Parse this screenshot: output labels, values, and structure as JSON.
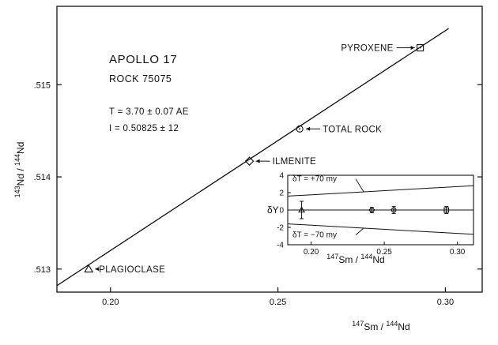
{
  "chart_data": [
    {
      "type": "scatter",
      "title": "APOLLO 17",
      "subtitle": "ROCK 75075",
      "age_text": "T = 3.70 ± 0.07 AE",
      "initial_text": "I = 0.50825 ± 12",
      "xlabel": "147Sm / 144Nd",
      "ylabel": "143Nd / 144Nd",
      "xlim": [
        0.184,
        0.311
      ],
      "ylim": [
        0.51275,
        0.51585
      ],
      "x_ticks": [
        0.2,
        0.25,
        0.3
      ],
      "x_tick_labels": [
        "0.20",
        "0.25",
        "0.30"
      ],
      "y_ticks": [
        0.513,
        0.514,
        0.515
      ],
      "y_tick_labels": [
        ".513",
        ".514",
        ".515"
      ],
      "isochron": {
        "x": [
          0.184,
          0.301
        ],
        "y": [
          0.51282,
          0.51561
        ]
      },
      "points": [
        {
          "name": "PLAGIOCLASE",
          "x": 0.1935,
          "y": 0.513,
          "marker": "triangle"
        },
        {
          "name": "ILMENITE",
          "x": 0.2415,
          "y": 0.51417,
          "marker": "diamond"
        },
        {
          "name": "TOTAL ROCK",
          "x": 0.2565,
          "y": 0.51452,
          "marker": "circle-dot"
        },
        {
          "name": "PYROXENE",
          "x": 0.2925,
          "y": 0.5154,
          "marker": "square-dot"
        }
      ],
      "grid": false
    },
    {
      "type": "scatter",
      "ylabel": "δY",
      "xlabel": "147Sm / 144Nd",
      "xlim": [
        0.184,
        0.311
      ],
      "ylim": [
        -4,
        4
      ],
      "x_ticks": [
        0.2,
        0.25,
        0.3
      ],
      "x_tick_labels": [
        "0.20",
        "0.25",
        "0.30"
      ],
      "y_ticks": [
        4,
        2,
        0,
        -2,
        -4
      ],
      "y_tick_labels": [
        "4",
        "2",
        "0",
        "-2",
        "-4"
      ],
      "error_envelope": [
        {
          "label": "δT = +70 my",
          "x": [
            0.184,
            0.311
          ],
          "y": [
            1.6,
            2.8
          ]
        },
        {
          "label": "δT = −70 my",
          "x": [
            0.184,
            0.311
          ],
          "y": [
            -1.6,
            -2.8
          ]
        }
      ],
      "points": [
        {
          "x": 0.1935,
          "y": 0.0,
          "err": 1.0,
          "marker": "triangle"
        },
        {
          "x": 0.2415,
          "y": 0.0,
          "err": 0.3,
          "marker": "diamond"
        },
        {
          "x": 0.2565,
          "y": 0.0,
          "err": 0.4,
          "marker": "circle-dot"
        },
        {
          "x": 0.2925,
          "y": 0.0,
          "err": 0.4,
          "marker": "square-dot"
        }
      ]
    }
  ]
}
